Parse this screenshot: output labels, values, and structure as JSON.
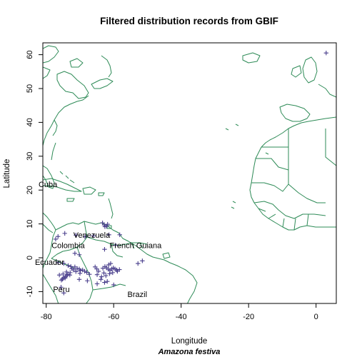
{
  "chart_data": {
    "type": "scatter",
    "title": "Filtered distribution records from GBIF",
    "xlabel": "Longitude",
    "ylabel": "Latitude",
    "subtitle": "Amazona festiva",
    "xlim": [
      -81,
      6
    ],
    "ylim": [
      -13.5,
      63.5
    ],
    "xticks": [
      -80,
      -60,
      -40,
      -20,
      0
    ],
    "yticks": [
      -10,
      0,
      10,
      20,
      30,
      40,
      50,
      60
    ],
    "marker": "+",
    "point_color": "#483d8b",
    "coast_color": "#2e8b57",
    "place_labels": [
      {
        "text": "Cuba",
        "lon": -79.5,
        "lat": 21.5
      },
      {
        "text": "Venezuela",
        "lon": -66.5,
        "lat": 6.5
      },
      {
        "text": "Colombia",
        "lon": -73.5,
        "lat": 3.5
      },
      {
        "text": "French Guiana",
        "lon": -53.5,
        "lat": 3.5
      },
      {
        "text": "Ecuador",
        "lon": -79,
        "lat": -1.5
      },
      {
        "text": "Peru",
        "lon": -75.5,
        "lat": -9.5
      },
      {
        "text": "Brazil",
        "lon": -53,
        "lat": -11
      }
    ],
    "points": [
      [
        3,
        60.5
      ],
      [
        -71.2,
        6.7
      ],
      [
        -74.5,
        7.2
      ],
      [
        -68.5,
        6.2
      ],
      [
        -66,
        6.5
      ],
      [
        -61.4,
        6.8
      ],
      [
        -58.2,
        6.8
      ],
      [
        -63.3,
        10.3
      ],
      [
        -62.8,
        9.7
      ],
      [
        -62.1,
        9.3
      ],
      [
        -61.8,
        9.9
      ],
      [
        -62.6,
        9.2
      ],
      [
        -76.5,
        6.3
      ],
      [
        -77.2,
        5.5
      ],
      [
        -71.5,
        1.3
      ],
      [
        -70.2,
        0.9
      ],
      [
        -59.5,
        3.7
      ],
      [
        -62.7,
        2.5
      ],
      [
        -52.8,
        -1.7
      ],
      [
        -51.5,
        -0.9
      ],
      [
        -76.5,
        -1.4
      ],
      [
        -74.8,
        -1.7
      ],
      [
        -73.5,
        -2.3
      ],
      [
        -72.7,
        -2.6
      ],
      [
        -71.5,
        -2.7
      ],
      [
        -70.8,
        -3.2
      ],
      [
        -70.2,
        -3.3
      ],
      [
        -69.9,
        -3.8
      ],
      [
        -69.2,
        -3.6
      ],
      [
        -68.6,
        -4.0
      ],
      [
        -68.0,
        -4.3
      ],
      [
        -67.2,
        -4.9
      ],
      [
        -71.9,
        -3.6
      ],
      [
        -72.9,
        -4.4
      ],
      [
        -73.6,
        -4.9
      ],
      [
        -73.9,
        -5.2
      ],
      [
        -74.3,
        -5.6
      ],
      [
        -74.8,
        -5.9
      ],
      [
        -75.2,
        -6.3
      ],
      [
        -75.5,
        -6.6
      ],
      [
        -74.4,
        -6.0
      ],
      [
        -75.0,
        -4.8
      ],
      [
        -72.4,
        -3.2
      ],
      [
        -71.2,
        -4.1
      ],
      [
        -70.0,
        -4.6
      ],
      [
        -73.0,
        -5.1
      ],
      [
        -74.0,
        -4.2
      ],
      [
        -76.1,
        -5.1
      ],
      [
        -75.6,
        -8.7
      ],
      [
        -74.8,
        -10.4
      ],
      [
        -65.5,
        -2.7
      ],
      [
        -65.0,
        -3.3
      ],
      [
        -63.2,
        -3.1
      ],
      [
        -62.6,
        -2.6
      ],
      [
        -62.1,
        -3.0
      ],
      [
        -61.6,
        -3.4
      ],
      [
        -61.1,
        -3.7
      ],
      [
        -60.6,
        -3.3
      ],
      [
        -60.1,
        -3.0
      ],
      [
        -59.6,
        -3.3
      ],
      [
        -59.1,
        -3.6
      ],
      [
        -58.9,
        -4.0
      ],
      [
        -60.3,
        -4.4
      ],
      [
        -61.2,
        -4.7
      ],
      [
        -62.9,
        -4.5
      ],
      [
        -64.5,
        -4.0
      ],
      [
        -64.9,
        -5.0
      ],
      [
        -63.6,
        -5.6
      ],
      [
        -62.3,
        -5.3
      ],
      [
        -61.5,
        -2.1
      ],
      [
        -60.9,
        -1.7
      ],
      [
        -58.3,
        -3.5
      ],
      [
        -60.0,
        -8.0
      ],
      [
        -62.7,
        -7.3
      ],
      [
        -64.9,
        -7.7
      ],
      [
        -63.8,
        -6.4
      ],
      [
        -61.9,
        -7.0
      ],
      [
        -67.8,
        -6.8
      ],
      [
        -70.2,
        -6.4
      ]
    ]
  }
}
